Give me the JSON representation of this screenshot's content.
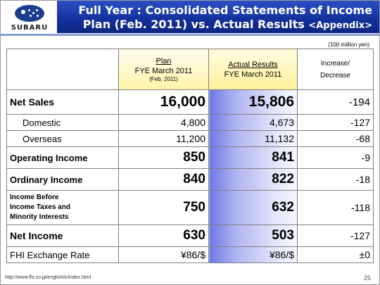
{
  "brand": {
    "logo_text": "SUBARU",
    "accent": "#1b3f8f"
  },
  "title": {
    "line1": "Full Year : Consolidated Statements of Income",
    "line2": "Plan (Feb. 2011) vs. Actual Results",
    "appendix": "<Appendix>"
  },
  "unit": "(100 million yen)",
  "table": {
    "headers": {
      "plan_title": "Plan",
      "plan_period": "FYE March 2011",
      "plan_note": "(Feb, 2011)",
      "actual_title": "Actual Results",
      "actual_period": "FYE March 2011",
      "diff_line1": "Increase/",
      "diff_line2": "Decrease"
    },
    "rows": [
      {
        "label": "Net Sales",
        "plan": "16,000",
        "actual": "15,806",
        "diff": "-194"
      },
      {
        "label": "Domestic",
        "plan": "4,800",
        "actual": "4,673",
        "diff": "-127"
      },
      {
        "label": "Overseas",
        "plan": "11,200",
        "actual": "11,132",
        "diff": "-68"
      },
      {
        "label": "Operating Income",
        "plan": "850",
        "actual": "841",
        "diff": "-9"
      },
      {
        "label": "Ordinary Income",
        "plan": "840",
        "actual": "822",
        "diff": "-18"
      },
      {
        "label_l1": "Income Before",
        "label_l2": "Income Taxes and",
        "label_l3": "Minority Interests",
        "plan": "750",
        "actual": "632",
        "diff": "-118"
      },
      {
        "label": "Net Income",
        "plan": "630",
        "actual": "503",
        "diff": "-127"
      },
      {
        "label": "FHI Exchange Rate",
        "plan": "¥86/$",
        "actual": "¥86/$",
        "diff": "±0"
      }
    ]
  },
  "footer": {
    "url": "http://www.fhi.co.jp/english/ir/index.html",
    "page": "25"
  }
}
